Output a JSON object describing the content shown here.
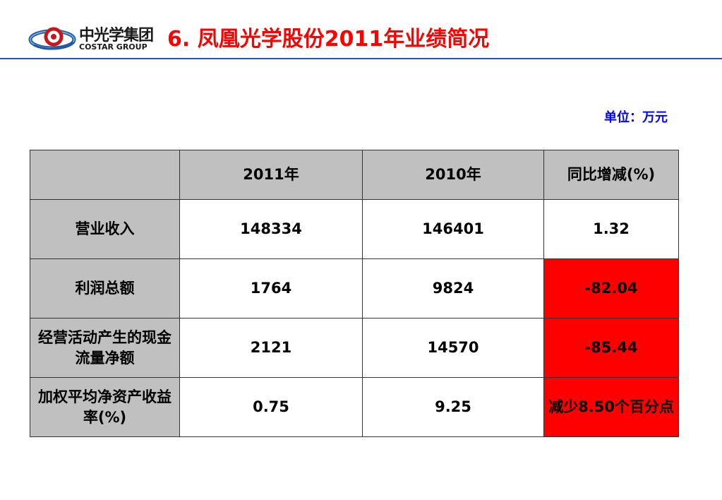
{
  "logo": {
    "cn": "中光学集团",
    "en": "COSTAR GROUP"
  },
  "title": "6.  凤凰光学股份2011年业绩简况",
  "unit": "单位：万元",
  "table": {
    "headers": [
      "",
      "2011年",
      "2010年",
      "同比增减(%)"
    ],
    "rows": [
      {
        "label": "营业收入",
        "y2011": "148334",
        "y2010": "146401",
        "change": "1.32",
        "highlight": false
      },
      {
        "label": "利润总额",
        "y2011": "1764",
        "y2010": "9824",
        "change": "-82.04",
        "highlight": true
      },
      {
        "label": "经营活动产生的现金流量净额",
        "y2011": "2121",
        "y2010": "14570",
        "change": "-85.44",
        "highlight": true
      },
      {
        "label": "加权平均净资产收益率(%)",
        "y2011": "0.75",
        "y2010": "9.25",
        "change": "减少8.50个百分点",
        "highlight": true
      }
    ]
  },
  "colors": {
    "title": "#ff0000",
    "unit": "#0000ff",
    "header_line": "#1f5aa6",
    "label_cell": "#c0c0c0",
    "highlight_cell": "#ff0000"
  }
}
